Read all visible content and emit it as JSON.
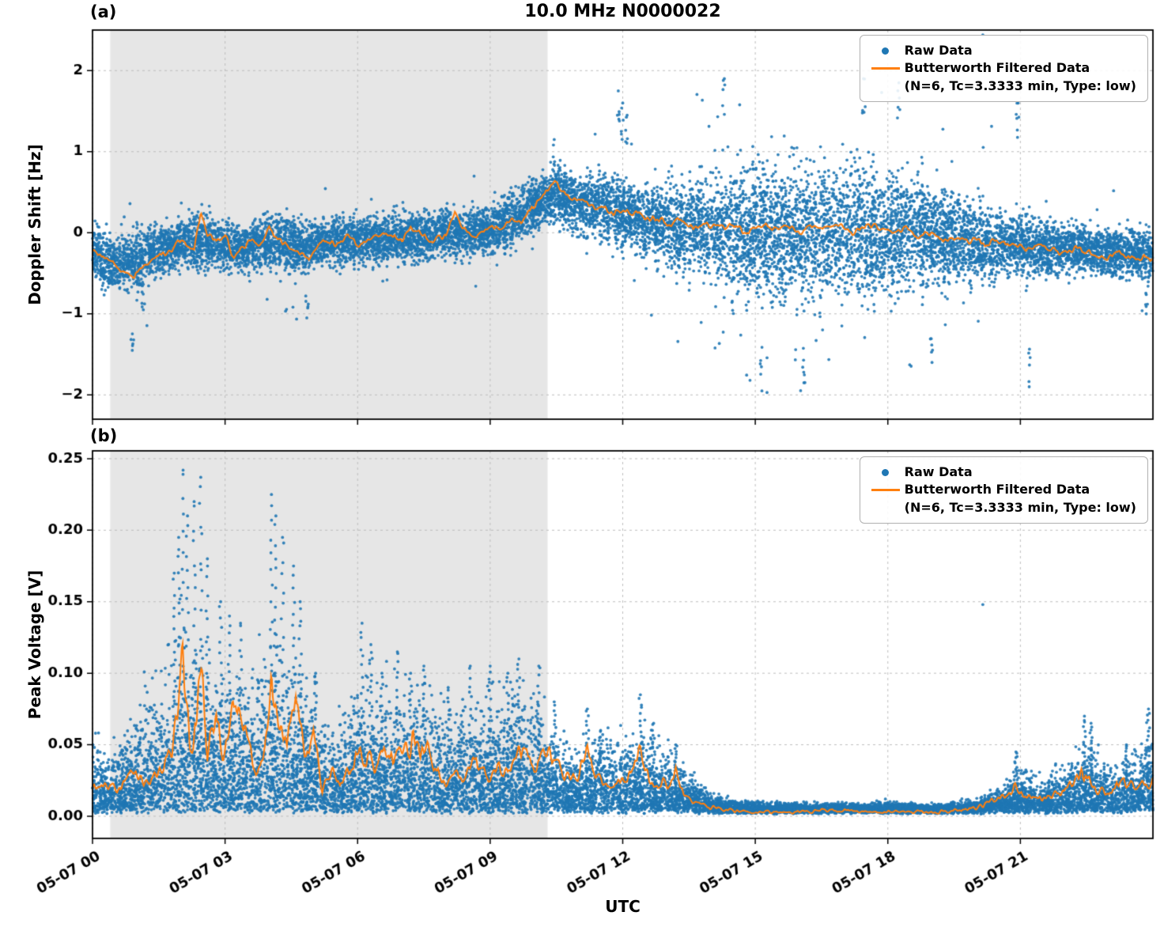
{
  "figure": {
    "title": "10.0 MHz N0000022",
    "xlabel": "UTC"
  },
  "legend": {
    "raw_label": "Raw Data",
    "filtered_label_line1": "Butterworth Filtered Data",
    "filtered_label_line2": "(N=6, Tc=3.3333 min, Type: low)"
  },
  "colors": {
    "raw": "#1f77b4",
    "filtered": "#ff7f0e",
    "shade": "#e6e6e6",
    "grid": "#bdbdbd",
    "axis": "#000000"
  },
  "render": {
    "n_raw_a": 13000,
    "n_raw_b": 13000,
    "seed_a": 20240507,
    "seed_b": 777,
    "marker_radius": 1.9
  },
  "chart_data": [
    {
      "id": "a",
      "panel_label": "(a)",
      "type": "scatter",
      "title": "10.0 MHz N0000022",
      "ylabel": "Doppler Shift [Hz]",
      "ylim": [
        -2.3,
        2.5
      ],
      "yticks": [
        -2,
        -1,
        0,
        1,
        2
      ],
      "ytick_labels": [
        "−2",
        "−1",
        "0",
        "1",
        "2"
      ],
      "xlim_hours": [
        0,
        24
      ],
      "xticks_hours": [
        0,
        3,
        6,
        9,
        12,
        15,
        18,
        21
      ],
      "shaded_region_hours": [
        0.4,
        10.3
      ],
      "legend": [
        "Raw Data",
        "Butterworth Filtered Data (N=6, Tc=3.3333 min, Type: low)"
      ],
      "raw_envelope": {
        "t": [
          0,
          0.5,
          1,
          1.5,
          2,
          2.5,
          3,
          3.5,
          4,
          4.5,
          5,
          5.5,
          6,
          6.5,
          7,
          7.5,
          8,
          8.5,
          9,
          9.5,
          10,
          10.5,
          11,
          11.5,
          12,
          12.5,
          13,
          13.5,
          14,
          14.5,
          15,
          15.5,
          16,
          16.5,
          17,
          17.5,
          18,
          18.5,
          19,
          19.5,
          20,
          20.5,
          21,
          21.5,
          22,
          22.5,
          23,
          23.5,
          24
        ],
        "center": [
          -0.25,
          -0.4,
          -0.35,
          -0.2,
          -0.15,
          -0.1,
          -0.15,
          -0.2,
          -0.1,
          -0.15,
          -0.15,
          -0.1,
          -0.1,
          -0.1,
          -0.05,
          -0.05,
          0,
          0,
          0.05,
          0.15,
          0.35,
          0.5,
          0.35,
          0.3,
          0.25,
          0.15,
          0.1,
          0.05,
          0.05,
          0,
          0,
          0,
          0,
          0,
          0.05,
          0,
          0,
          0,
          -0.05,
          -0.1,
          -0.1,
          -0.15,
          -0.15,
          -0.2,
          -0.2,
          -0.2,
          -0.25,
          -0.25,
          -0.3
        ],
        "spread": [
          0.28,
          0.3,
          0.32,
          0.28,
          0.26,
          0.3,
          0.26,
          0.26,
          0.3,
          0.3,
          0.26,
          0.26,
          0.26,
          0.26,
          0.26,
          0.26,
          0.26,
          0.26,
          0.28,
          0.3,
          0.3,
          0.3,
          0.32,
          0.34,
          0.36,
          0.4,
          0.45,
          0.52,
          0.6,
          0.68,
          0.72,
          0.75,
          0.75,
          0.75,
          0.75,
          0.7,
          0.65,
          0.6,
          0.55,
          0.5,
          0.42,
          0.36,
          0.32,
          0.3,
          0.28,
          0.26,
          0.26,
          0.26,
          0.28
        ],
        "outlier_max": [
          0.8,
          1,
          1.3,
          0.9,
          0.7,
          0.7,
          0.7,
          0.7,
          0.9,
          1,
          0.8,
          0.7,
          0.7,
          0.7,
          0.7,
          0.8,
          0.7,
          0.7,
          0.7,
          0.7,
          0.7,
          0.8,
          0.9,
          1.2,
          1.5,
          1.4,
          1.5,
          1.6,
          1.8,
          1.9,
          2,
          2,
          2,
          1.9,
          1.9,
          1.9,
          1.9,
          1.8,
          1.7,
          1.5,
          1.4,
          1.6,
          1.7,
          1.2,
          1,
          0.9,
          0.8,
          0.9,
          0.9
        ]
      },
      "spikes": [
        [
          0.9,
          -1.45
        ],
        [
          1.15,
          -0.95
        ],
        [
          4.85,
          -1.05
        ],
        [
          10.45,
          1.15
        ],
        [
          11.9,
          1.75
        ],
        [
          12.0,
          1.6
        ],
        [
          12.1,
          1.45
        ],
        [
          14.3,
          1.9
        ],
        [
          15.15,
          -1.95
        ],
        [
          16.1,
          -1.85
        ],
        [
          17.45,
          1.9
        ],
        [
          18.25,
          1.85
        ],
        [
          19.0,
          -1.6
        ],
        [
          20.95,
          1.6
        ],
        [
          21.2,
          -1.9
        ],
        [
          23.85,
          -1.0
        ]
      ],
      "stray_points": [
        [
          20.15,
          2.44
        ]
      ],
      "filtered_line": {
        "t": [
          0,
          0.3,
          0.6,
          0.9,
          1.1,
          1.4,
          1.7,
          2.0,
          2.3,
          2.45,
          2.6,
          2.8,
          3.0,
          3.2,
          3.4,
          3.6,
          3.8,
          4.0,
          4.2,
          4.4,
          4.7,
          4.9,
          5.1,
          5.3,
          5.5,
          5.8,
          6.0,
          6.2,
          6.5,
          6.7,
          7.0,
          7.2,
          7.5,
          7.7,
          8.0,
          8.2,
          8.35,
          8.6,
          8.8,
          9.0,
          9.2,
          9.5,
          9.7,
          10.0,
          10.2,
          10.45,
          10.6,
          10.8,
          11.0,
          11.2,
          11.5,
          11.8,
          12.0,
          12.3,
          12.5,
          12.8,
          13.0,
          13.3,
          13.6,
          13.9,
          14.2,
          14.5,
          14.8,
          15.1,
          15.4,
          15.7,
          16.0,
          16.3,
          16.6,
          16.9,
          17.2,
          17.5,
          17.8,
          18.1,
          18.4,
          18.7,
          19.0,
          19.3,
          19.6,
          19.9,
          20.2,
          20.5,
          20.8,
          21.1,
          21.4,
          21.7,
          22.0,
          22.3,
          22.6,
          22.9,
          23.2,
          23.5,
          23.8,
          24.0
        ],
        "y": [
          -0.2,
          -0.3,
          -0.45,
          -0.55,
          -0.45,
          -0.3,
          -0.25,
          -0.1,
          -0.2,
          0.25,
          -0.05,
          -0.1,
          -0.05,
          -0.3,
          -0.15,
          -0.1,
          -0.15,
          0.05,
          -0.1,
          -0.15,
          -0.25,
          -0.3,
          -0.15,
          -0.1,
          -0.15,
          -0.05,
          -0.15,
          -0.1,
          -0.05,
          0.0,
          -0.1,
          0.05,
          -0.05,
          -0.1,
          -0.05,
          0.3,
          0.1,
          -0.05,
          0.0,
          0.1,
          0.05,
          0.15,
          0.1,
          0.35,
          0.45,
          0.65,
          0.55,
          0.45,
          0.4,
          0.35,
          0.3,
          0.25,
          0.3,
          0.25,
          0.2,
          0.15,
          0.1,
          0.15,
          0.05,
          0.1,
          0.05,
          0.1,
          0.0,
          0.1,
          0.05,
          0.1,
          0.0,
          0.1,
          0.05,
          0.1,
          0.0,
          0.1,
          0.05,
          0.0,
          0.05,
          -0.05,
          0.0,
          -0.1,
          -0.05,
          -0.1,
          -0.15,
          -0.1,
          -0.15,
          -0.2,
          -0.15,
          -0.2,
          -0.25,
          -0.2,
          -0.25,
          -0.3,
          -0.25,
          -0.3,
          -0.3,
          -0.35
        ],
        "wiggle_amp": 0.07
      }
    },
    {
      "id": "b",
      "panel_label": "(b)",
      "type": "scatter",
      "ylabel": "Peak Voltage [V]",
      "ylim": [
        -0.0155,
        0.2555
      ],
      "yticks": [
        0,
        0.05,
        0.1,
        0.15,
        0.2,
        0.25
      ],
      "ytick_labels": [
        "0.00",
        "0.05",
        "0.10",
        "0.15",
        "0.20",
        "0.25"
      ],
      "xlim_hours": [
        0,
        24
      ],
      "xticks_hours": [
        0,
        3,
        6,
        9,
        12,
        15,
        18,
        21
      ],
      "xtick_labels": [
        "05-07 00",
        "05-07 03",
        "05-07 06",
        "05-07 09",
        "05-07 12",
        "05-07 15",
        "05-07 18",
        "05-07 21"
      ],
      "xlabel": "UTC",
      "shaded_region_hours": [
        0.4,
        10.3
      ],
      "legend": [
        "Raw Data",
        "Butterworth Filtered Data (N=6, Tc=3.3333 min, Type: low)"
      ],
      "raw_envelope": {
        "t": [
          0,
          0.5,
          1,
          1.5,
          2,
          2.5,
          3,
          3.5,
          4,
          4.5,
          5,
          5.5,
          6,
          6.5,
          7,
          7.5,
          8,
          8.5,
          9,
          9.5,
          10,
          10.5,
          11,
          11.5,
          12,
          12.5,
          13,
          13.5,
          14,
          14.5,
          15,
          15.5,
          16,
          16.5,
          17,
          17.5,
          18,
          18.5,
          19,
          19.5,
          20,
          20.5,
          21,
          21.5,
          22,
          22.5,
          23,
          23.5,
          24
        ],
        "amp_top": [
          0.055,
          0.05,
          0.08,
          0.1,
          0.13,
          0.12,
          0.1,
          0.09,
          0.13,
          0.11,
          0.08,
          0.06,
          0.09,
          0.09,
          0.085,
          0.09,
          0.07,
          0.08,
          0.08,
          0.09,
          0.08,
          0.055,
          0.045,
          0.06,
          0.05,
          0.06,
          0.045,
          0.03,
          0.015,
          0.008,
          0.007,
          0.006,
          0.005,
          0.005,
          0.006,
          0.005,
          0.007,
          0.005,
          0.005,
          0.006,
          0.008,
          0.018,
          0.03,
          0.022,
          0.035,
          0.05,
          0.035,
          0.045,
          0.06
        ]
      },
      "spikes": [
        [
          1.85,
          0.17
        ],
        [
          1.95,
          0.195
        ],
        [
          2.05,
          0.242
        ],
        [
          2.15,
          0.21
        ],
        [
          2.3,
          0.22
        ],
        [
          2.45,
          0.237
        ],
        [
          2.6,
          0.18
        ],
        [
          2.9,
          0.15
        ],
        [
          3.1,
          0.14
        ],
        [
          3.35,
          0.135
        ],
        [
          4.05,
          0.225
        ],
        [
          4.15,
          0.21
        ],
        [
          4.3,
          0.195
        ],
        [
          4.55,
          0.175
        ],
        [
          4.7,
          0.15
        ],
        [
          5.05,
          0.1
        ],
        [
          6.1,
          0.135
        ],
        [
          6.3,
          0.12
        ],
        [
          6.55,
          0.1
        ],
        [
          6.9,
          0.115
        ],
        [
          7.2,
          0.1
        ],
        [
          7.5,
          0.105
        ],
        [
          8.05,
          0.09
        ],
        [
          8.55,
          0.105
        ],
        [
          9.0,
          0.105
        ],
        [
          9.4,
          0.1
        ],
        [
          9.65,
          0.11
        ],
        [
          10.1,
          0.105
        ],
        [
          10.45,
          0.08
        ],
        [
          11.2,
          0.075
        ],
        [
          11.5,
          0.06
        ],
        [
          12.4,
          0.085
        ],
        [
          12.7,
          0.065
        ],
        [
          13.2,
          0.05
        ],
        [
          20.9,
          0.045
        ],
        [
          22.45,
          0.07
        ],
        [
          22.6,
          0.065
        ],
        [
          23.4,
          0.05
        ],
        [
          23.9,
          0.075
        ]
      ],
      "stray_points": [
        [
          20.15,
          0.148
        ]
      ],
      "filtered_line": {
        "t": [
          0,
          0.3,
          0.6,
          0.9,
          1.2,
          1.5,
          1.8,
          1.95,
          2.05,
          2.2,
          2.35,
          2.45,
          2.6,
          2.8,
          2.95,
          3.1,
          3.3,
          3.5,
          3.7,
          3.9,
          4.05,
          4.2,
          4.4,
          4.6,
          4.8,
          5.0,
          5.2,
          5.4,
          5.6,
          5.8,
          6.0,
          6.2,
          6.4,
          6.6,
          6.8,
          7.0,
          7.2,
          7.4,
          7.6,
          7.8,
          8.0,
          8.2,
          8.4,
          8.6,
          8.8,
          9.0,
          9.2,
          9.4,
          9.6,
          9.8,
          10.0,
          10.2,
          10.4,
          10.6,
          10.8,
          11.0,
          11.2,
          11.4,
          11.6,
          11.8,
          12.0,
          12.2,
          12.4,
          12.6,
          12.8,
          13.0,
          13.2,
          13.4,
          13.6,
          13.8,
          14.0,
          14.5,
          15.0,
          15.5,
          16.0,
          16.5,
          17.0,
          17.5,
          18.0,
          18.5,
          19.0,
          19.5,
          20.0,
          20.3,
          20.6,
          20.9,
          21.2,
          21.5,
          21.8,
          22.1,
          22.4,
          22.7,
          23.0,
          23.3,
          23.6,
          24.0
        ],
        "y": [
          0.02,
          0.025,
          0.02,
          0.03,
          0.025,
          0.03,
          0.045,
          0.08,
          0.115,
          0.05,
          0.07,
          0.105,
          0.04,
          0.07,
          0.045,
          0.06,
          0.08,
          0.05,
          0.03,
          0.05,
          0.11,
          0.06,
          0.05,
          0.09,
          0.04,
          0.055,
          0.02,
          0.03,
          0.025,
          0.03,
          0.045,
          0.04,
          0.035,
          0.045,
          0.04,
          0.05,
          0.055,
          0.045,
          0.05,
          0.03,
          0.02,
          0.03,
          0.025,
          0.045,
          0.03,
          0.025,
          0.035,
          0.03,
          0.05,
          0.045,
          0.035,
          0.045,
          0.04,
          0.03,
          0.025,
          0.03,
          0.045,
          0.03,
          0.025,
          0.02,
          0.025,
          0.03,
          0.045,
          0.025,
          0.02,
          0.025,
          0.03,
          0.015,
          0.01,
          0.008,
          0.006,
          0.004,
          0.003,
          0.003,
          0.003,
          0.004,
          0.004,
          0.003,
          0.003,
          0.003,
          0.003,
          0.004,
          0.005,
          0.01,
          0.015,
          0.02,
          0.015,
          0.012,
          0.015,
          0.02,
          0.03,
          0.02,
          0.015,
          0.025,
          0.02,
          0.025
        ],
        "wiggle_rel": 0.3
      }
    }
  ]
}
